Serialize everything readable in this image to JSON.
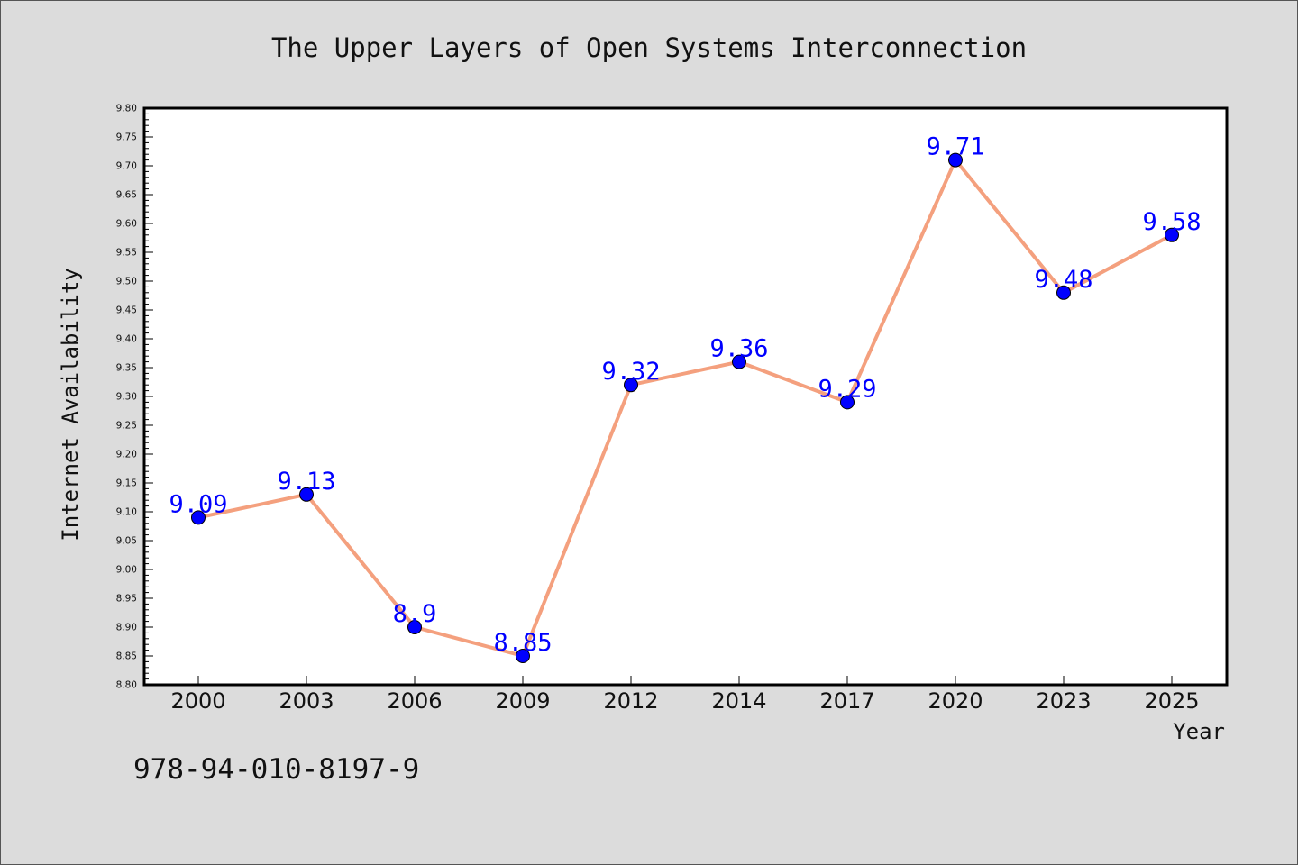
{
  "chart_data": {
    "type": "line",
    "title": "The Upper Layers of Open Systems Interconnection",
    "xlabel": "Year",
    "ylabel": "Internet Availability",
    "categories": [
      "2000",
      "2003",
      "2006",
      "2009",
      "2012",
      "2014",
      "2017",
      "2020",
      "2023",
      "2025"
    ],
    "series": [
      {
        "values": [
          9.09,
          9.13,
          8.9,
          8.85,
          9.32,
          9.36,
          9.29,
          9.71,
          9.48,
          9.58
        ],
        "labels": [
          "9.09",
          "9.13",
          "8.9",
          "8.85",
          "9.32",
          "9.36",
          "9.29",
          "9.71",
          "9.48",
          "9.58"
        ],
        "line_color": "#f4a07e",
        "marker_color": "#0000ff",
        "label_color": "#0000ff"
      }
    ],
    "ylim": [
      8.8,
      9.8
    ],
    "ytick_step": 0.05,
    "grid": false,
    "legend": "none",
    "annotation": "978-94-010-8197-9"
  }
}
